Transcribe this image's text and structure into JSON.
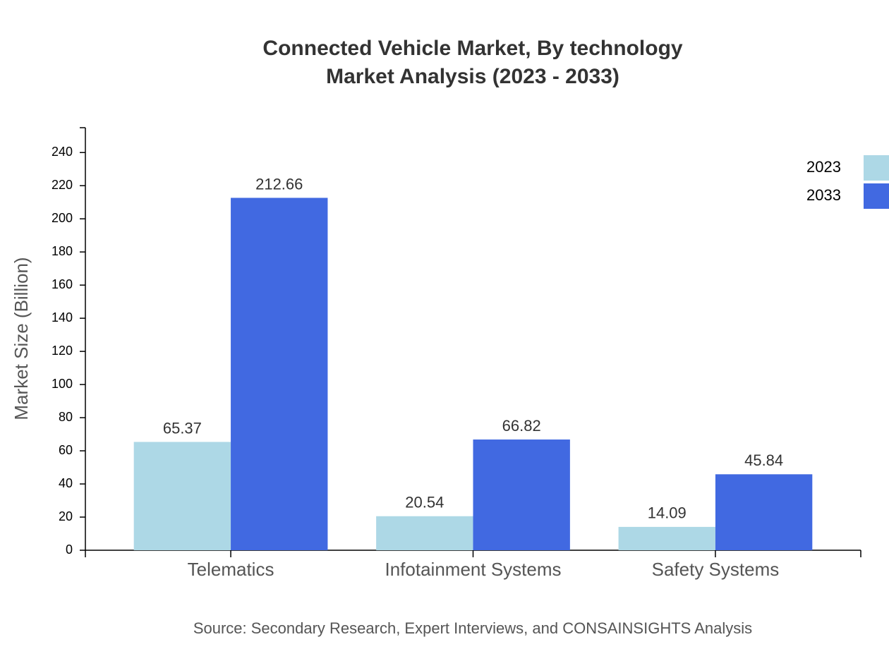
{
  "chart_data": {
    "type": "bar",
    "title": "Connected Vehicle Market, By technology",
    "subtitle": "Market Analysis (2023 - 2033)",
    "y_label": "Market Size (Billion)",
    "source": "Source: Secondary Research, Expert Interviews, and CONSAINSIGHTS Analysis",
    "categories": [
      "Telematics",
      "Infotainment Systems",
      "Safety Systems"
    ],
    "series": [
      {
        "name": "2023",
        "color": "#add8e6",
        "values": [
          65.37,
          20.54,
          14.09
        ]
      },
      {
        "name": "2033",
        "color": "#4169e1",
        "values": [
          212.66,
          66.82,
          45.84
        ]
      }
    ],
    "ylim": [
      0,
      255
    ],
    "yticks": [
      0,
      20,
      40,
      60,
      80,
      100,
      120,
      140,
      160,
      180,
      200,
      220,
      240
    ],
    "legend": "top-right"
  }
}
